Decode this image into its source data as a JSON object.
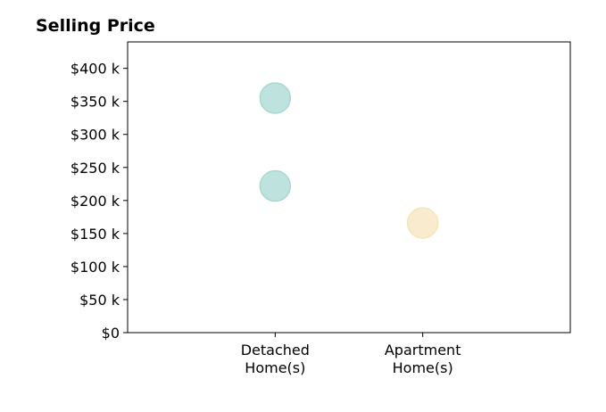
{
  "chart_data": {
    "type": "scatter",
    "title": "Selling Price",
    "xlabel": "",
    "ylabel": "",
    "categories": [
      [
        "Detached",
        "Home(s)"
      ],
      [
        "Apartment",
        "Home(s)"
      ]
    ],
    "xlim": [
      0,
      3
    ],
    "ylim": [
      0,
      440000
    ],
    "yticks": [
      0,
      50000,
      100000,
      150000,
      200000,
      250000,
      300000,
      350000,
      400000
    ],
    "ytick_labels": [
      "$0",
      "$50 k",
      "$100 k",
      "$150 k",
      "$200 k",
      "$250 k",
      "$300 k",
      "$350 k",
      "$400 k"
    ],
    "points": [
      {
        "category_index": 0,
        "y": 355000,
        "color": "#a8d8d2"
      },
      {
        "category_index": 0,
        "y": 222000,
        "color": "#a8d8d2"
      },
      {
        "category_index": 1,
        "y": 166000,
        "color": "#f6e4bd"
      }
    ],
    "grid": false,
    "legend": "none"
  }
}
